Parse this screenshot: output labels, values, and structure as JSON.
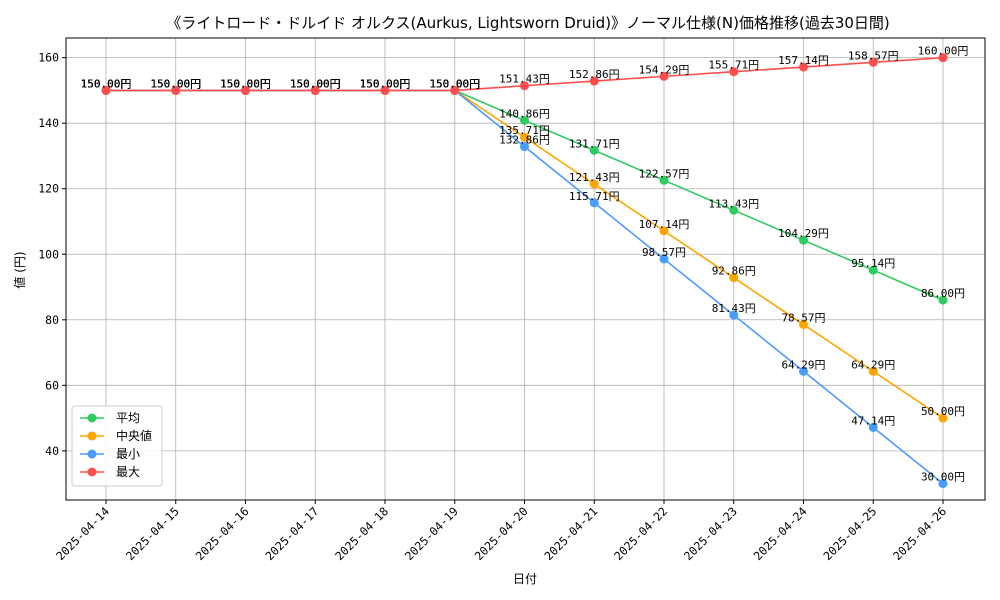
{
  "chart_data": {
    "type": "line",
    "title": "《ライトロード・ドルイド オルクス(Aurkus, Lightsworn Druid)》ノーマル仕様(N)価格推移(過去30日間)",
    "xlabel": "日付",
    "ylabel": "値 (円)",
    "x": [
      "2025-04-14",
      "2025-04-15",
      "2025-04-16",
      "2025-04-17",
      "2025-04-18",
      "2025-04-19",
      "2025-04-20",
      "2025-04-21",
      "2025-04-22",
      "2025-04-23",
      "2025-04-24",
      "2025-04-25",
      "2025-04-26"
    ],
    "ylim": [
      25,
      166
    ],
    "yticks": [
      40,
      60,
      80,
      100,
      120,
      140,
      160
    ],
    "grid": true,
    "legend_position": "lower-left",
    "value_suffix": "円",
    "series": [
      {
        "name": "平均",
        "color": "#2ecc5f",
        "values": [
          150.0,
          150.0,
          150.0,
          150.0,
          150.0,
          150.0,
          140.86,
          131.71,
          122.57,
          113.43,
          104.29,
          95.14,
          86.0
        ]
      },
      {
        "name": "中央値",
        "color": "#ffa500",
        "values": [
          150.0,
          150.0,
          150.0,
          150.0,
          150.0,
          150.0,
          135.71,
          121.43,
          107.14,
          92.86,
          78.57,
          64.29,
          50.0
        ]
      },
      {
        "name": "最小",
        "color": "#4a9bff",
        "values": [
          150.0,
          150.0,
          150.0,
          150.0,
          150.0,
          150.0,
          132.86,
          115.71,
          98.57,
          81.43,
          64.29,
          47.14,
          30.0
        ]
      },
      {
        "name": "最大",
        "color": "#ff4d4d",
        "values": [
          150.0,
          150.0,
          150.0,
          150.0,
          150.0,
          150.0,
          151.43,
          152.86,
          154.29,
          155.71,
          157.14,
          158.57,
          160.0
        ]
      }
    ]
  }
}
